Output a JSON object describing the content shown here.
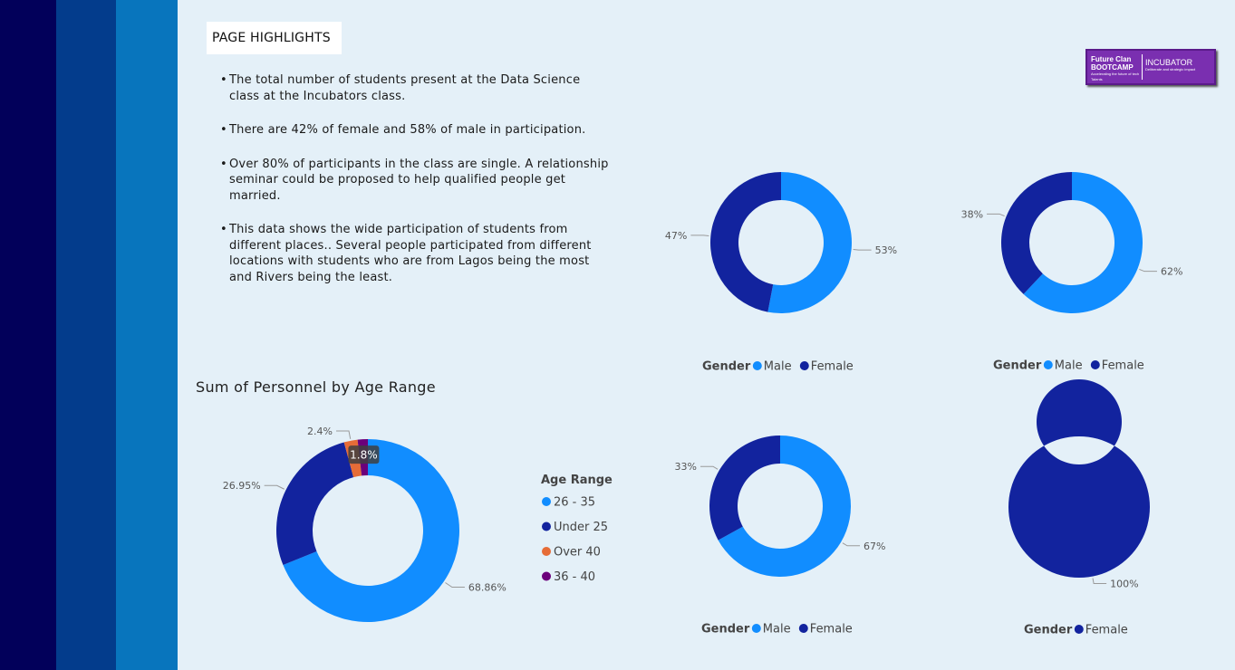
{
  "highlights": {
    "title": "PAGE HIGHLIGHTS",
    "bullets": [
      "The total number of students present at the Data Science class at the Incubators class.",
      "There are 42% of female and 58% of  male in participation.",
      "Over 80% of participants in the class are single. A relationship seminar could be proposed to help qualified people get married.",
      "This data shows the wide participation of students from different places.. Several people participated from different locations with students who are from Lagos being the most and Rivers being the least."
    ]
  },
  "logo": {
    "left_line1": "Future Clan",
    "left_line2": "BOOTCAMP",
    "left_tag": "Accelerating the future of tech Talents",
    "right_text": "INCUBATOR",
    "right_tag": "Deliberate and strategic impact"
  },
  "colors": {
    "male": "#118dff",
    "female": "#12239e",
    "over40": "#e66c37",
    "age36_40": "#6b007b",
    "background": "#e4f0f8",
    "band1": "#02005a",
    "band2": "#033c8c",
    "band3": "#0875bd"
  },
  "chart_data": [
    {
      "type": "pie",
      "donut": true,
      "title": "Sum of Personnel by Age Range",
      "legend_title": "Age Range",
      "legend_position": "right",
      "categories": [
        "26 - 35",
        "Under 25",
        "Over 40",
        "36 - 40"
      ],
      "values": [
        68.86,
        26.95,
        2.4,
        1.8
      ],
      "labels": [
        "68.86%",
        "26.95%",
        "2.4%",
        "1.8%"
      ],
      "colors": [
        "#118dff",
        "#12239e",
        "#e66c37",
        "#6b007b"
      ]
    },
    {
      "type": "pie",
      "donut": true,
      "legend_title": "Gender",
      "legend_position": "bottom",
      "categories": [
        "Male",
        "Female"
      ],
      "values": [
        53,
        47
      ],
      "labels": [
        "53%",
        "47%"
      ],
      "colors": [
        "#118dff",
        "#12239e"
      ]
    },
    {
      "type": "pie",
      "donut": true,
      "legend_title": "Gender",
      "legend_position": "bottom",
      "categories": [
        "Male",
        "Female"
      ],
      "values": [
        62,
        38
      ],
      "labels": [
        "62%",
        "38%"
      ],
      "colors": [
        "#118dff",
        "#12239e"
      ]
    },
    {
      "type": "pie",
      "donut": true,
      "legend_title": "Gender",
      "legend_position": "bottom",
      "categories": [
        "Male",
        "Female"
      ],
      "values": [
        67,
        33
      ],
      "labels": [
        "67%",
        "33%"
      ],
      "colors": [
        "#118dff",
        "#12239e"
      ]
    },
    {
      "type": "pie",
      "donut": true,
      "legend_title": "Gender",
      "legend_position": "bottom",
      "categories": [
        "Female"
      ],
      "values": [
        100
      ],
      "labels": [
        "100%"
      ],
      "colors": [
        "#12239e"
      ]
    }
  ]
}
